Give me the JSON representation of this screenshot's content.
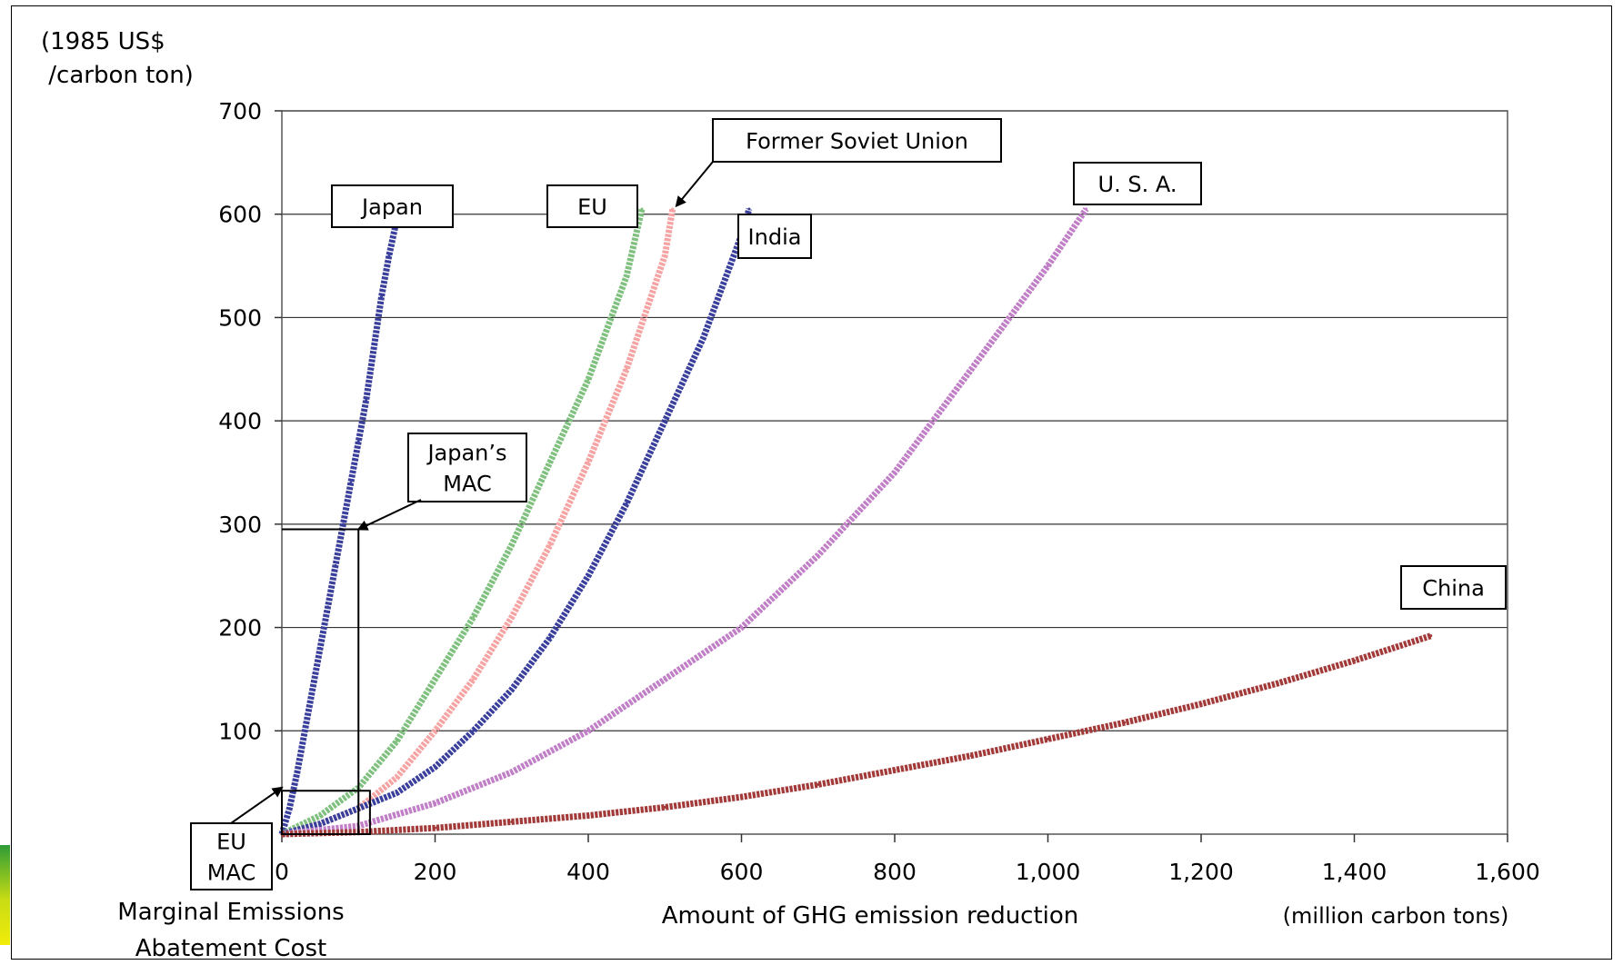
{
  "chart_data": {
    "type": "line",
    "title": "",
    "xlabel": "Amount of GHG emission reduction",
    "xunit": "(million carbon tons)",
    "ylabel_lines": [
      "(1985 US$",
      " /carbon ton)"
    ],
    "xlim": [
      0,
      1600
    ],
    "ylim": [
      0,
      700
    ],
    "xticks": [
      0,
      200,
      400,
      600,
      800,
      1000,
      1200,
      1400,
      1600
    ],
    "xtick_labels": [
      "0",
      "200",
      "400",
      "600",
      "800",
      "1,000",
      "1,200",
      "1,400",
      "1,600"
    ],
    "yticks": [
      100,
      200,
      300,
      400,
      500,
      600,
      700
    ],
    "ytick_labels": [
      "100",
      "200",
      "300",
      "400",
      "500",
      "600",
      "700"
    ],
    "grid": true,
    "legend": "none (series labeled by callout boxes)",
    "series": [
      {
        "name": "Japan",
        "color": "#3a3f9c",
        "x": [
          0,
          10,
          20,
          30,
          40,
          50,
          60,
          70,
          80,
          90,
          100,
          110,
          120,
          130,
          140,
          150
        ],
        "y": [
          0,
          25,
          60,
          100,
          140,
          180,
          220,
          260,
          300,
          340,
          380,
          420,
          470,
          520,
          560,
          595
        ]
      },
      {
        "name": "EU",
        "color": "#7fc07f",
        "x": [
          0,
          50,
          100,
          150,
          200,
          250,
          300,
          350,
          400,
          450,
          470
        ],
        "y": [
          0,
          18,
          45,
          90,
          150,
          210,
          280,
          360,
          440,
          540,
          605
        ]
      },
      {
        "name": "Former Soviet Union",
        "color": "#f5a3a3",
        "x": [
          0,
          50,
          100,
          150,
          200,
          250,
          300,
          350,
          400,
          450,
          500,
          510
        ],
        "y": [
          0,
          10,
          25,
          55,
          100,
          150,
          210,
          280,
          360,
          450,
          560,
          605
        ]
      },
      {
        "name": "India",
        "color": "#3a3f9c",
        "x": [
          0,
          50,
          100,
          150,
          200,
          250,
          300,
          350,
          400,
          450,
          500,
          550,
          600,
          610
        ],
        "y": [
          0,
          10,
          25,
          40,
          65,
          100,
          140,
          190,
          250,
          320,
          400,
          480,
          580,
          605
        ]
      },
      {
        "name": "U. S. A.",
        "color": "#c07fc6",
        "x": [
          0,
          100,
          200,
          300,
          400,
          500,
          600,
          700,
          800,
          900,
          1000,
          1050
        ],
        "y": [
          0,
          8,
          30,
          60,
          100,
          150,
          200,
          270,
          350,
          450,
          550,
          605
        ]
      },
      {
        "name": "China",
        "color": "#a33a3a",
        "x": [
          0,
          100,
          200,
          300,
          400,
          500,
          600,
          700,
          800,
          900,
          1000,
          1100,
          1200,
          1300,
          1400,
          1500
        ],
        "y": [
          0,
          2,
          6,
          12,
          18,
          26,
          36,
          48,
          62,
          76,
          92,
          108,
          126,
          146,
          168,
          192
        ]
      }
    ],
    "annotations": [
      {
        "id": "japan",
        "text": [
          "Japan"
        ],
        "target": "Japan"
      },
      {
        "id": "eu",
        "text": [
          "EU"
        ],
        "target": "EU"
      },
      {
        "id": "fsu",
        "text": [
          "Former Soviet Union"
        ],
        "target": "Former Soviet Union",
        "arrow_to": [
          515,
          608
        ]
      },
      {
        "id": "india",
        "text": [
          "India"
        ],
        "target": "India"
      },
      {
        "id": "usa",
        "text": [
          "U. S. A."
        ],
        "target": "U. S. A."
      },
      {
        "id": "china",
        "text": [
          "China"
        ],
        "target": "China"
      },
      {
        "id": "japan-mac",
        "text": [
          "Japan’s",
          "MAC"
        ],
        "target": "Japan",
        "arrow_to": [
          100,
          295
        ],
        "marker": {
          "x": 100,
          "y": 295
        }
      },
      {
        "id": "eu-mac",
        "text": [
          "EU",
          "MAC"
        ],
        "target": "EU",
        "arrow_to": [
          0,
          45
        ],
        "marker_box": {
          "x0": 0,
          "x1": 115,
          "y0": 0,
          "y1": 42
        }
      }
    ],
    "footer_caption": [
      "Marginal Emissions",
      "Abatement Cost"
    ]
  }
}
